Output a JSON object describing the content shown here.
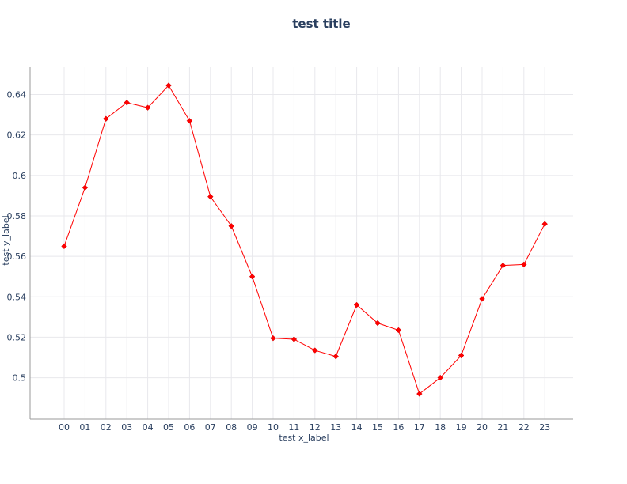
{
  "chart_data": {
    "type": "line",
    "title": "test title",
    "xlabel": "test x_label",
    "ylabel": "test y_label",
    "categories": [
      "00",
      "01",
      "02",
      "03",
      "04",
      "05",
      "06",
      "07",
      "08",
      "09",
      "10",
      "11",
      "12",
      "13",
      "14",
      "15",
      "16",
      "17",
      "18",
      "19",
      "20",
      "21",
      "22",
      "23"
    ],
    "yticks": [
      "0.5",
      "0.52",
      "0.54",
      "0.56",
      "0.58",
      "0.6",
      "0.62",
      "0.64"
    ],
    "ylim": [
      0.4795,
      0.6535
    ],
    "grid": true,
    "series": [
      {
        "values": [
          0.565,
          0.594,
          0.628,
          0.636,
          0.6335,
          0.6445,
          0.627,
          0.5895,
          0.575,
          0.55,
          0.5195,
          0.519,
          0.5135,
          0.5105,
          0.536,
          0.527,
          0.5235,
          0.492,
          0.5,
          0.511,
          0.539,
          0.5555,
          0.556,
          0.576
        ],
        "color": "#ff0000"
      }
    ]
  }
}
